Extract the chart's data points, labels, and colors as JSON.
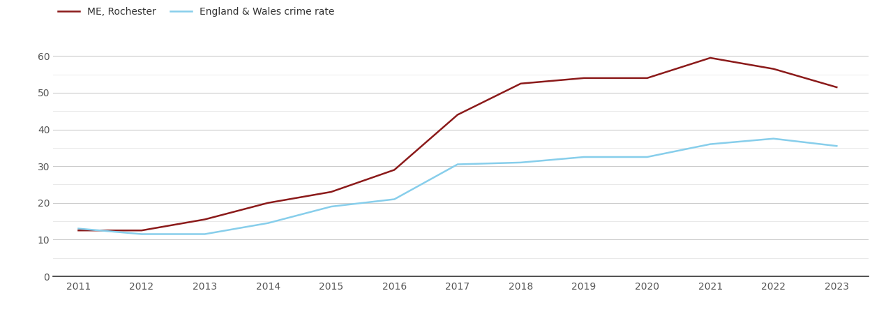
{
  "years": [
    2011,
    2012,
    2013,
    2014,
    2015,
    2016,
    2017,
    2018,
    2019,
    2020,
    2021,
    2022,
    2023
  ],
  "me_rochester": [
    12.5,
    12.5,
    15.5,
    20.0,
    23.0,
    29.0,
    44.0,
    52.5,
    54.0,
    54.0,
    59.5,
    56.5,
    51.5
  ],
  "england_wales": [
    13.0,
    11.5,
    11.5,
    14.5,
    19.0,
    21.0,
    30.5,
    31.0,
    32.5,
    32.5,
    36.0,
    37.5,
    35.5
  ],
  "me_color": "#8B1A1A",
  "ew_color": "#87CEEB",
  "legend_me": "ME, Rochester",
  "legend_ew": "England & Wales crime rate",
  "ylim": [
    0,
    65
  ],
  "yticks_major": [
    0,
    10,
    20,
    30,
    40,
    50,
    60
  ],
  "yticks_minor": [
    5,
    15,
    25,
    35,
    45,
    55
  ],
  "background_color": "#ffffff",
  "grid_color_major": "#cccccc",
  "grid_color_minor": "#e5e5e5",
  "line_width": 1.8,
  "legend_text_color": "#333333",
  "tick_label_color": "#555555",
  "figure_width": 12.7,
  "figure_height": 4.5
}
